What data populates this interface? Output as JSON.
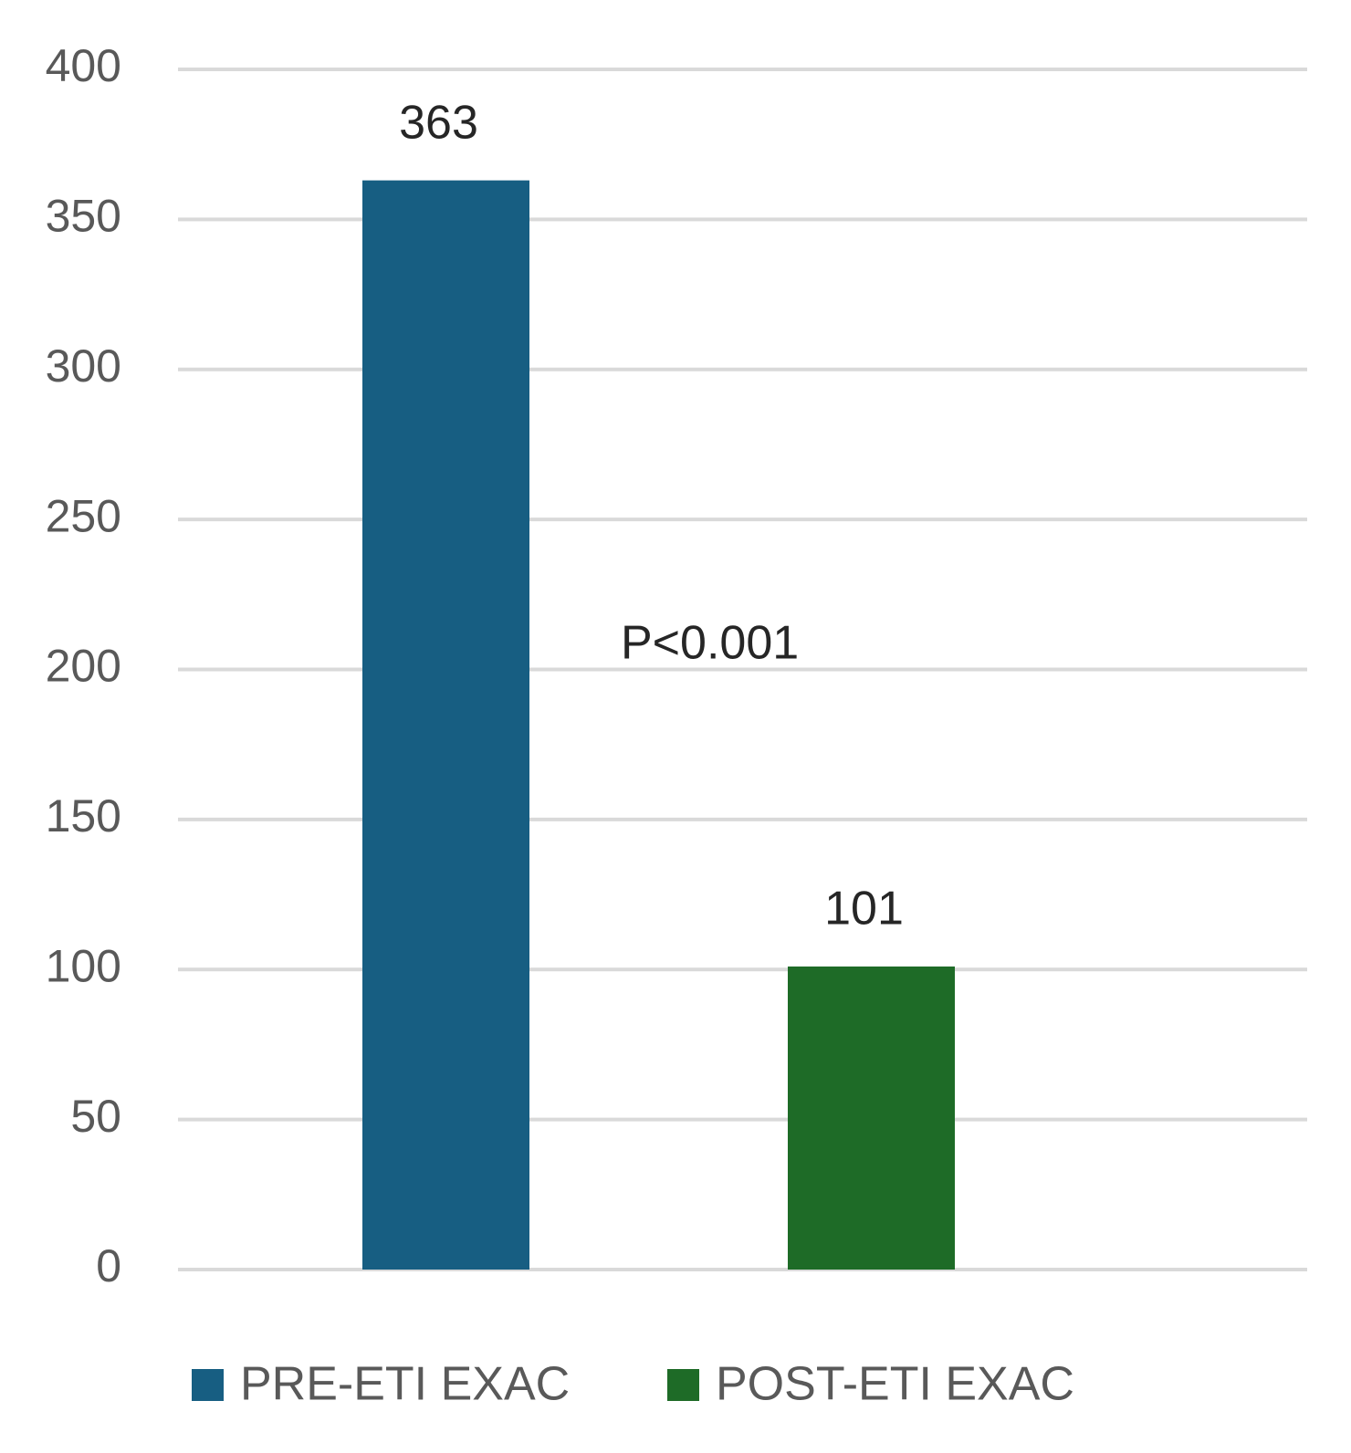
{
  "chart_data": {
    "type": "bar",
    "categories": [
      null
    ],
    "series": [
      {
        "name": "PRE-ETI EXAC",
        "color": "#175e82",
        "values": [
          363
        ]
      },
      {
        "name": "POST-ETI EXAC",
        "color": "#1e6b27",
        "values": [
          101
        ]
      }
    ],
    "annotations": [
      "P<0.001"
    ],
    "ylim": [
      0,
      400
    ],
    "yticks": [
      0,
      50,
      100,
      150,
      200,
      250,
      300,
      350,
      400
    ],
    "grid": true,
    "legend": "bottom"
  }
}
